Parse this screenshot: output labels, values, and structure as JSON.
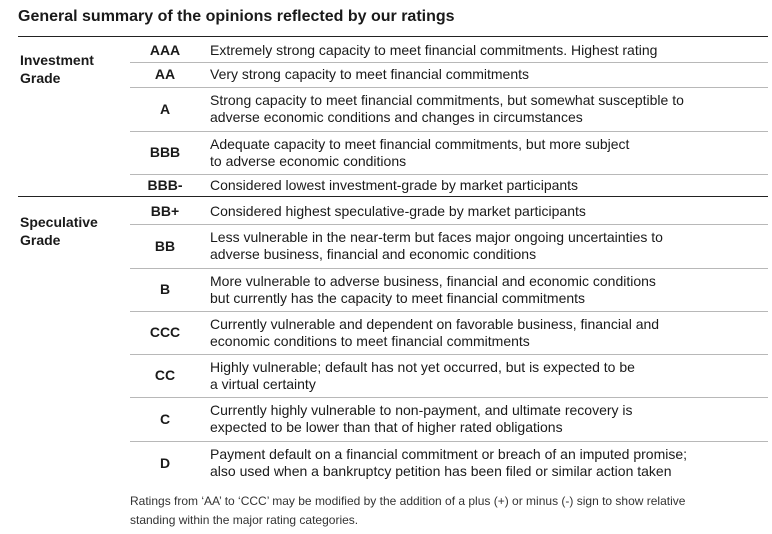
{
  "title": "General summary of the opinions reflected by our ratings",
  "groups": [
    {
      "line1": "Investment",
      "line2": "Grade"
    },
    {
      "line1": "Speculative",
      "line2": "Grade"
    }
  ],
  "ratings": [
    {
      "code": "AAA",
      "desc": [
        "Extremely strong capacity to meet financial commitments. Highest rating"
      ]
    },
    {
      "code": "AA",
      "desc": [
        "Very strong capacity to meet financial commitments"
      ]
    },
    {
      "code": "A",
      "desc": [
        "Strong capacity to meet financial commitments, but somewhat susceptible to",
        "adverse economic conditions and changes in circumstances"
      ]
    },
    {
      "code": "BBB",
      "desc": [
        "Adequate capacity to meet financial commitments, but more subject",
        "to adverse economic conditions"
      ]
    },
    {
      "code": "BBB-",
      "desc": [
        "Considered lowest investment-grade by market participants"
      ]
    },
    {
      "code": "BB+",
      "desc": [
        "Considered highest speculative-grade by market participants"
      ]
    },
    {
      "code": "BB",
      "desc": [
        "Less vulnerable in the near-term but faces major ongoing uncertainties to",
        "adverse business, financial and economic conditions"
      ]
    },
    {
      "code": "B",
      "desc": [
        "More vulnerable to adverse business, financial and economic conditions",
        "but currently has the capacity to meet financial commitments"
      ]
    },
    {
      "code": "CCC",
      "desc": [
        "Currently vulnerable and dependent on favorable business, financial and",
        "economic conditions to meet financial commitments"
      ]
    },
    {
      "code": "CC",
      "desc": [
        "Highly vulnerable; default has not yet occurred, but is expected to be",
        "a virtual certainty"
      ]
    },
    {
      "code": "C",
      "desc": [
        "Currently highly vulnerable to non-payment, and ultimate recovery is",
        "expected to be lower than that of higher rated obligations"
      ]
    },
    {
      "code": "D",
      "desc": [
        "Payment default on a financial commitment or breach of an imputed promise;",
        "also used when a bankruptcy petition has been filed or similar action taken"
      ]
    }
  ],
  "footnote": [
    "Ratings from ‘AA’ to ‘CCC’ may be modified by the addition of a plus (+) or minus (-) sign to show relative",
    "standing within the major rating categories."
  ]
}
